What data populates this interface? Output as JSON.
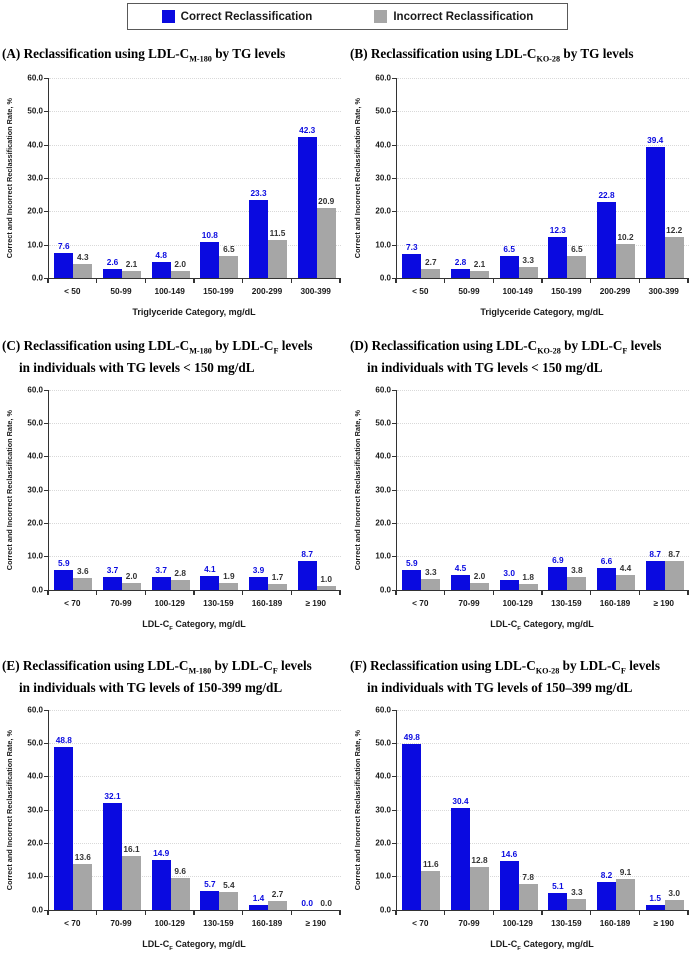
{
  "colors": {
    "correct": "#0a0ae0",
    "incorrect": "#a6a6a6",
    "correct_label": "#0a0ae0",
    "incorrect_label": "#333333",
    "axis": "#333333",
    "gridline": "#d9d9d9"
  },
  "legend": {
    "items": [
      {
        "label": "Correct Reclassification",
        "color": "#0a0ae0"
      },
      {
        "label": "Incorrect Reclassification",
        "color": "#a6a6a6"
      }
    ]
  },
  "chart_data": [
    {
      "type": "bar",
      "panel": "A",
      "title_text": "(A) Reclassification using LDL-C(M-180) by TG levels",
      "title_lines": [
        [
          {
            "t": "(A) Reclassification using LDL-C"
          },
          {
            "t": "M-180",
            "sub": true
          },
          {
            "t": " by TG levels"
          }
        ]
      ],
      "categories": [
        "< 50",
        "50-99",
        "100-149",
        "150-199",
        "200-299",
        "300-399"
      ],
      "series": [
        {
          "name": "Correct Reclassification",
          "values": [
            7.6,
            2.6,
            4.8,
            10.8,
            23.3,
            42.3
          ]
        },
        {
          "name": "Incorrect Reclassification",
          "values": [
            4.3,
            2.1,
            2.0,
            6.5,
            11.5,
            20.9
          ]
        }
      ],
      "xlabel_parts": [
        {
          "t": "Triglyceride Category, mg/dL"
        }
      ],
      "xlabel": "Triglyceride Category, mg/dL",
      "ylabel": "Correct and Incorrect Reclassification Rate, %",
      "ylim": [
        0,
        60
      ],
      "ytick_step": 10,
      "grid": true,
      "legend_position": "top"
    },
    {
      "type": "bar",
      "panel": "B",
      "title_text": "(B) Reclassification using LDL-C(KO-28) by TG levels",
      "title_lines": [
        [
          {
            "t": "(B) Reclassification using LDL-C"
          },
          {
            "t": "KO-28",
            "sub": true
          },
          {
            "t": " by TG levels"
          }
        ]
      ],
      "categories": [
        "< 50",
        "50-99",
        "100-149",
        "150-199",
        "200-299",
        "300-399"
      ],
      "series": [
        {
          "name": "Correct Reclassification",
          "values": [
            7.3,
            2.8,
            6.5,
            12.3,
            22.8,
            39.4
          ]
        },
        {
          "name": "Incorrect Reclassification",
          "values": [
            2.7,
            2.1,
            3.3,
            6.5,
            10.2,
            12.2
          ]
        }
      ],
      "xlabel_parts": [
        {
          "t": "Triglyceride Category, mg/dL"
        }
      ],
      "xlabel": "Triglyceride Category, mg/dL",
      "ylabel": "Correct and Incorrect Reclassification Rate, %",
      "ylim": [
        0,
        60
      ],
      "ytick_step": 10,
      "grid": true,
      "legend_position": "top"
    },
    {
      "type": "bar",
      "panel": "C",
      "title_text": "(C) Reclassification using LDL-C(M-180) by LDL-C(F) levels in individuals with TG levels < 150 mg/dL",
      "title_lines": [
        [
          {
            "t": "(C) Reclassification using LDL-C"
          },
          {
            "t": "M-180",
            "sub": true
          },
          {
            "t": " by LDL-C"
          },
          {
            "t": "F",
            "sub": true
          },
          {
            "t": " levels"
          }
        ],
        [
          {
            "t": "in individuals with TG levels < 150 mg/dL"
          }
        ]
      ],
      "categories": [
        "< 70",
        "70-99",
        "100-129",
        "130-159",
        "160-189",
        "≥ 190"
      ],
      "series": [
        {
          "name": "Correct Reclassification",
          "values": [
            5.9,
            3.7,
            3.7,
            4.1,
            3.9,
            8.7
          ]
        },
        {
          "name": "Incorrect Reclassification",
          "values": [
            3.6,
            2.0,
            2.8,
            1.9,
            1.7,
            1.0
          ]
        }
      ],
      "xlabel_parts": [
        {
          "t": "LDL-C"
        },
        {
          "t": "F",
          "sub": true
        },
        {
          "t": " Category, mg/dL"
        }
      ],
      "xlabel": "LDL-C(F) Category, mg/dL",
      "ylabel": "Correct and Incorrect Reclassification Rate, %",
      "ylim": [
        0,
        60
      ],
      "ytick_step": 10,
      "grid": true,
      "legend_position": "top"
    },
    {
      "type": "bar",
      "panel": "D",
      "title_text": "(D) Reclassification using LDL-C(KO-28) by LDL-C(F) levels in individuals with TG levels < 150 mg/dL",
      "title_lines": [
        [
          {
            "t": "(D) Reclassification using LDL-C"
          },
          {
            "t": "KO-28",
            "sub": true
          },
          {
            "t": " by LDL-C"
          },
          {
            "t": "F",
            "sub": true
          },
          {
            "t": " levels"
          }
        ],
        [
          {
            "t": "in individuals with TG levels < 150 mg/dL"
          }
        ]
      ],
      "categories": [
        "< 70",
        "70-99",
        "100-129",
        "130-159",
        "160-189",
        "≥ 190"
      ],
      "series": [
        {
          "name": "Correct Reclassification",
          "values": [
            5.9,
            4.5,
            3.0,
            6.9,
            6.6,
            8.7
          ]
        },
        {
          "name": "Incorrect Reclassification",
          "values": [
            3.3,
            2.0,
            1.8,
            3.8,
            4.4,
            8.7
          ]
        }
      ],
      "xlabel_parts": [
        {
          "t": "LDL-C"
        },
        {
          "t": "F",
          "sub": true
        },
        {
          "t": " Category, mg/dL"
        }
      ],
      "xlabel": "LDL-C(F) Category, mg/dL",
      "ylabel": "Correct and Incorrect Reclassification Rate, %",
      "ylim": [
        0,
        60
      ],
      "ytick_step": 10,
      "grid": true,
      "legend_position": "top"
    },
    {
      "type": "bar",
      "panel": "E",
      "title_text": "(E) Reclassification using LDL-C(M-180) by LDL-C(F) levels in individuals with TG levels of 150-399 mg/dL",
      "title_lines": [
        [
          {
            "t": "(E) Reclassification using LDL-C"
          },
          {
            "t": "M-180",
            "sub": true
          },
          {
            "t": " by LDL-C"
          },
          {
            "t": "F",
            "sub": true
          },
          {
            "t": " levels"
          }
        ],
        [
          {
            "t": "in individuals with TG levels of 150-399 mg/dL"
          }
        ]
      ],
      "categories": [
        "< 70",
        "70-99",
        "100-129",
        "130-159",
        "160-189",
        "≥ 190"
      ],
      "series": [
        {
          "name": "Correct Reclassification",
          "values": [
            48.8,
            32.1,
            14.9,
            5.7,
            1.4,
            0.0
          ]
        },
        {
          "name": "Incorrect Reclassification",
          "values": [
            13.6,
            16.1,
            9.6,
            5.4,
            2.7,
            0.0
          ]
        }
      ],
      "xlabel_parts": [
        {
          "t": "LDL-C"
        },
        {
          "t": "F",
          "sub": true
        },
        {
          "t": " Category, mg/dL"
        }
      ],
      "xlabel": "LDL-C(F) Category, mg/dL",
      "ylabel": "Correct and Incorrect Reclassification Rate, %",
      "ylim": [
        0,
        60
      ],
      "ytick_step": 10,
      "grid": true,
      "legend_position": "top"
    },
    {
      "type": "bar",
      "panel": "F",
      "title_text": "(F) Reclassification using LDL-C(KO-28) by LDL-C(F) levels in individuals with TG levels of 150–399 mg/dL",
      "title_lines": [
        [
          {
            "t": "(F) Reclassification using LDL-C"
          },
          {
            "t": "KO-28",
            "sub": true
          },
          {
            "t": " by LDL-C"
          },
          {
            "t": "F",
            "sub": true
          },
          {
            "t": " levels"
          }
        ],
        [
          {
            "t": "in individuals with TG levels of 150–399 mg/dL"
          }
        ]
      ],
      "categories": [
        "< 70",
        "70-99",
        "100-129",
        "130-159",
        "160-189",
        "≥ 190"
      ],
      "series": [
        {
          "name": "Correct Reclassification",
          "values": [
            49.8,
            30.4,
            14.6,
            5.1,
            8.2,
            1.5
          ]
        },
        {
          "name": "Incorrect Reclassification",
          "values": [
            11.6,
            12.8,
            7.8,
            3.3,
            9.1,
            3.0
          ]
        }
      ],
      "xlabel_parts": [
        {
          "t": "LDL-C"
        },
        {
          "t": "F",
          "sub": true
        },
        {
          "t": " Category, mg/dL"
        }
      ],
      "xlabel": "LDL-C(F) Category, mg/dL",
      "ylabel": "Correct and Incorrect Reclassification Rate, %",
      "ylim": [
        0,
        60
      ],
      "ytick_step": 10,
      "grid": true,
      "legend_position": "top"
    }
  ]
}
